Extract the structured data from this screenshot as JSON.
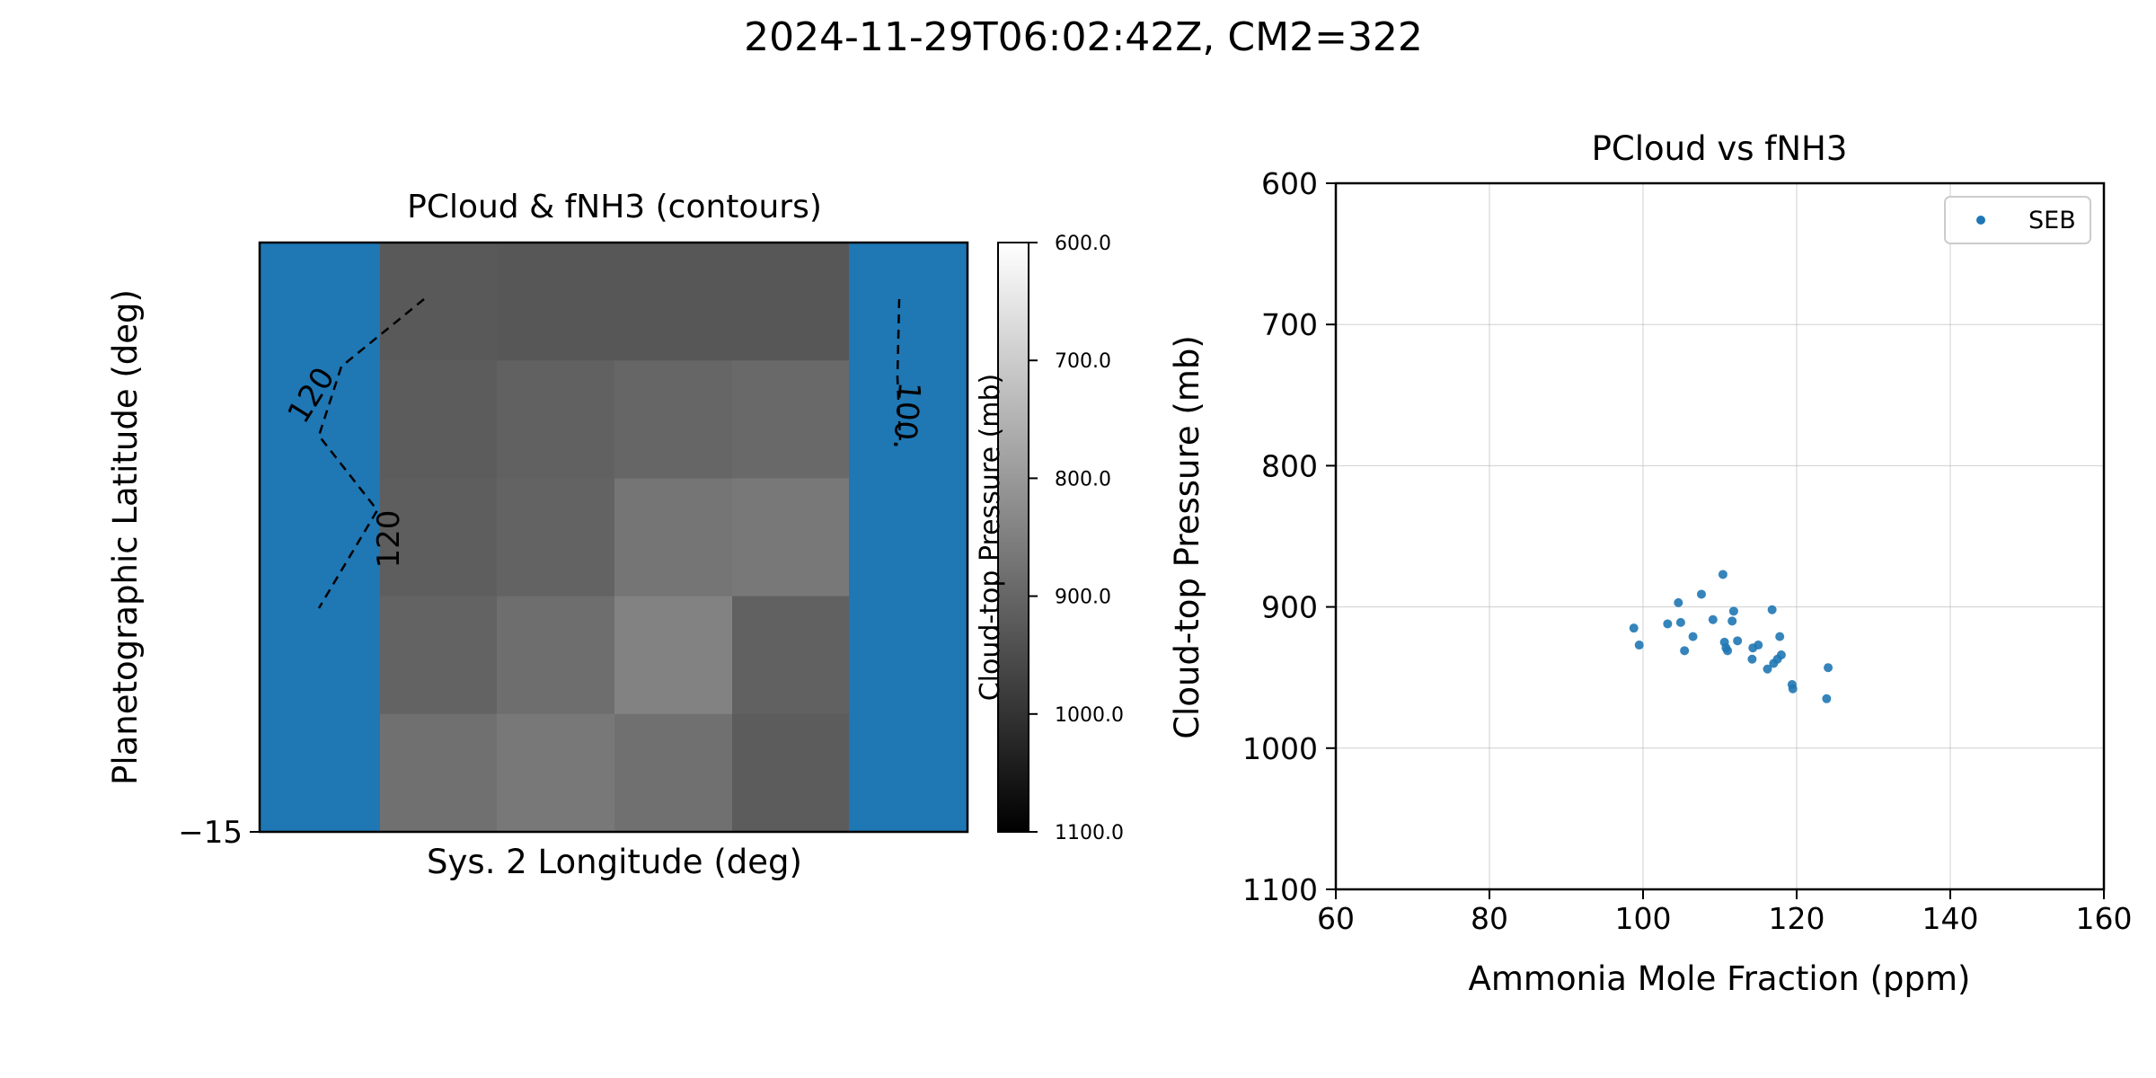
{
  "suptitle": "2024-11-29T06:02:42Z, CM2=322",
  "chart_data": [
    {
      "type": "heatmap",
      "title": "PCloud & fNH3 (contours)",
      "xlabel": "Sys. 2 Longitude (deg)",
      "ylabel": "Planetographic Latitude (deg)",
      "y_tick_labels": [
        "−15"
      ],
      "grid": [
        [
          null,
          925,
          930,
          930,
          930,
          null
        ],
        [
          null,
          920,
          910,
          900,
          895,
          null
        ],
        [
          null,
          915,
          905,
          870,
          865,
          null
        ],
        [
          null,
          905,
          885,
          845,
          910,
          null
        ],
        [
          null,
          880,
          865,
          880,
          920,
          null
        ]
      ],
      "missing_color": "#1f77b4",
      "colorbar": {
        "label": "Cloud-top Pressure (mb)",
        "range": [
          600,
          1100
        ],
        "ticks": [
          "600.0",
          "700.0",
          "800.0",
          "900.0",
          "1000.0",
          "1100.0"
        ],
        "colormap": "gray (reversed: low pressure = white)"
      },
      "contours": [
        {
          "level_label": "120",
          "style": "dashed",
          "color": "#000000"
        },
        {
          "level_label": "120",
          "style": "dashed",
          "color": "#000000"
        },
        {
          "level_label": "100.",
          "style": "dashed",
          "color": "#000000"
        }
      ]
    },
    {
      "type": "scatter",
      "title": "PCloud vs fNH3",
      "xlabel": "Ammonia Mole Fraction (ppm)",
      "ylabel": "Cloud-top Pressure (mb)",
      "xlim": [
        60,
        160
      ],
      "ylim": [
        1100,
        600
      ],
      "y_inverted": true,
      "x_ticks": [
        "60",
        "80",
        "100",
        "120",
        "140",
        "160"
      ],
      "y_ticks": [
        "600",
        "700",
        "800",
        "900",
        "1000",
        "1100"
      ],
      "grid": true,
      "legend": {
        "position": "top-right",
        "entries": [
          "SEB"
        ]
      },
      "series": [
        {
          "name": "SEB",
          "color": "#1f77b4",
          "points": [
            [
              98.8,
              915
            ],
            [
              99.5,
              927
            ],
            [
              103.2,
              912
            ],
            [
              104.6,
              897
            ],
            [
              104.9,
              911
            ],
            [
              105.4,
              931
            ],
            [
              106.5,
              921
            ],
            [
              107.6,
              891
            ],
            [
              109.1,
              909
            ],
            [
              110.4,
              877
            ],
            [
              110.8,
              929
            ],
            [
              110.6,
              925
            ],
            [
              111.0,
              931
            ],
            [
              111.6,
              910
            ],
            [
              111.8,
              903
            ],
            [
              112.3,
              924
            ],
            [
              114.2,
              937
            ],
            [
              114.3,
              929
            ],
            [
              115.0,
              927
            ],
            [
              116.2,
              944
            ],
            [
              116.8,
              902
            ],
            [
              117.0,
              940
            ],
            [
              117.5,
              937
            ],
            [
              117.8,
              921
            ],
            [
              118.0,
              934
            ],
            [
              119.4,
              955
            ],
            [
              119.5,
              958
            ],
            [
              123.9,
              965
            ],
            [
              124.1,
              943
            ]
          ]
        }
      ]
    }
  ]
}
